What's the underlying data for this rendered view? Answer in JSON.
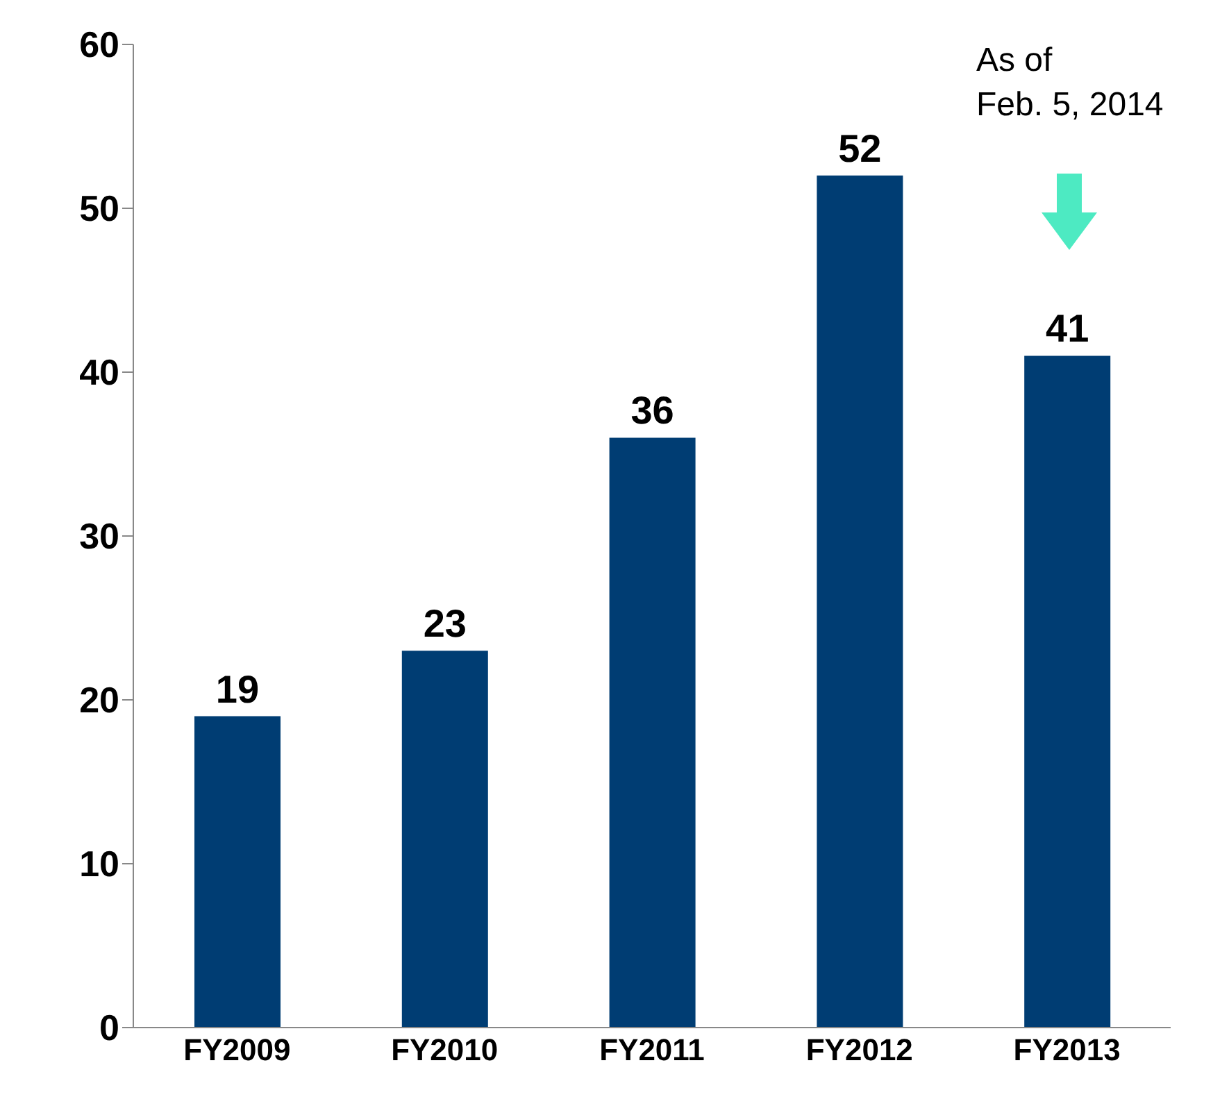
{
  "chart_data": {
    "type": "bar",
    "categories": [
      "FY2009",
      "FY2010",
      "FY2011",
      "FY2012",
      "FY2013"
    ],
    "values": [
      19,
      23,
      36,
      52,
      41
    ],
    "color": "#003d73",
    "ylim": [
      0,
      60
    ],
    "yticks": [
      0,
      10,
      20,
      30,
      40,
      50,
      60
    ],
    "data_labels": true,
    "annotations": [
      "As of\nFeb. 5, 2014"
    ]
  }
}
